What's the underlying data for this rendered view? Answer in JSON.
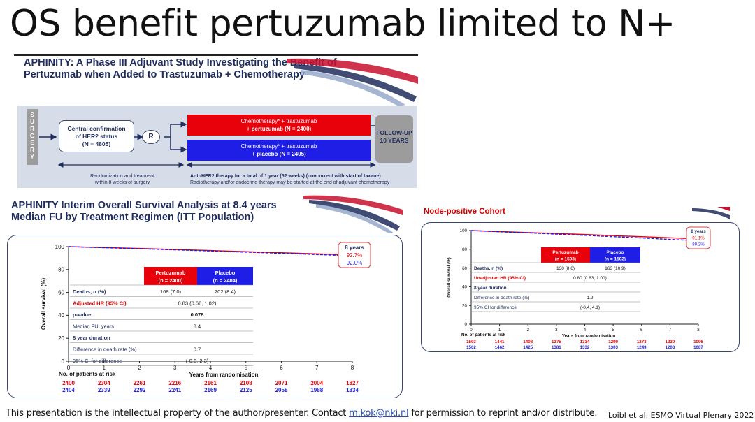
{
  "slide": {
    "title": "OS benefit pertuzumab limited to N+",
    "footer_prefix": "This presentation is the intellectual property of the author/presenter. Contact ",
    "footer_link": "m.kok@nki.nl",
    "footer_suffix": " for permission to reprint and/or distribute.",
    "citation": "Loibl et al. ESMO Virtual Plenary 2022"
  },
  "design": {
    "title": "APHINITY: A Phase III Adjuvant Study Investigating the Benefit of Pertuzumab when Added to Trastuzumab + Chemotherapy",
    "surgery_letters": [
      "S",
      "U",
      "R",
      "G",
      "E",
      "R",
      "Y"
    ],
    "confirmation": [
      "Central confirmation",
      "of HER2 status",
      "(N = 4805)"
    ],
    "randomize": "R",
    "arm_red": [
      "Chemotherapy* + trastuzumab",
      "+ pertuzumab (N = 2400)"
    ],
    "arm_blue": [
      "Chemotherapy* + trastuzumab",
      "+ placebo (N = 2405)"
    ],
    "followup": [
      "FOLLOW-UP",
      "10 YEARS"
    ],
    "note_left": [
      "Randomization and treatment",
      "within 8 weeks of surgery"
    ],
    "note_right_bold": "Anti-HER2 therapy for a total of 1 year (52 weeks) (concurrent with start of taxane)",
    "note_right": "Radiotherapy and/or endocrine therapy may be started at the end of adjuvant chemotherapy"
  },
  "itt": {
    "title": "APHINITY Interim Overall Survival Analysis at 8.4 years Median FU by Treatment Regimen (ITT Population)",
    "ylabel": "Overall survival (%)",
    "xlabel": "Years from randomisation",
    "risk_label": "No. of patients at risk",
    "box_title": "8 years",
    "box_red": "92.7%",
    "box_blue": "92.0%",
    "header_red": [
      "Pertuzumab",
      "(n = 2400)"
    ],
    "header_blue": [
      "Placebo",
      "(n = 2404)"
    ],
    "rows": [
      {
        "label": "Deaths, n (%)",
        "red": "168 (7.0)",
        "blue": "202 (8.4)",
        "label_color": "#1f2d5c",
        "bold": true
      },
      {
        "label": "Adjusted HR (95% CI)",
        "merged": "0.83 (0.68, 1.02)",
        "label_color": "#d10000",
        "bold": true
      },
      {
        "label": "p-value",
        "merged": "0.078",
        "label_color": "#1f2d5c",
        "bold": true,
        "value_bold": true
      },
      {
        "label": "Median FU, years",
        "merged": "8.4",
        "label_color": "#1f2d5c",
        "bold": false
      },
      {
        "label": "8 year duration",
        "merged": "",
        "label_color": "#1f2d5c",
        "bold": true
      },
      {
        "label": "Difference in death rate (%)",
        "merged": "0.7",
        "label_color": "#1f2d5c",
        "bold": false
      },
      {
        "label": "95% CI for difference",
        "merged": "(-0.8, 2.3)",
        "label_color": "#1f2d5c",
        "bold": false
      }
    ],
    "risk_red": [
      "2400",
      "2304",
      "2261",
      "2216",
      "2161",
      "2108",
      "2071",
      "2004",
      "1827"
    ],
    "risk_blue": [
      "2404",
      "2339",
      "2292",
      "2241",
      "2169",
      "2125",
      "2058",
      "1988",
      "1834"
    ]
  },
  "node": {
    "title": "Node-positive Cohort",
    "ylabel": "Overall survival (%)",
    "xlabel": "Years from randomisation",
    "risk_label": "No. of patients at risk",
    "box_title": "8 years",
    "box_red": "91.1%",
    "box_blue": "89.2%",
    "header_red": [
      "Pertuzumab",
      "(n = 1503)"
    ],
    "header_blue": [
      "Placebo",
      "(n = 1502)"
    ],
    "rows": [
      {
        "label": "Deaths, n (%)",
        "red": "130 (8.6)",
        "blue": "163 (10.9)",
        "label_color": "#1f2d5c",
        "bold": true
      },
      {
        "label": "Unadjusted HR (95% CI)",
        "merged": "0.80 (0.63, 1.00)",
        "label_color": "#d10000",
        "bold": true
      },
      {
        "label": "8 year duration",
        "merged": "",
        "label_color": "#1f2d5c",
        "bold": true
      },
      {
        "label": "Difference in death rate (%)",
        "merged": "1.9",
        "label_color": "#1f2d5c",
        "bold": false
      },
      {
        "label": "95% CI for difference",
        "merged": "(-0.4, 4.1)",
        "label_color": "#1f2d5c",
        "bold": false
      }
    ],
    "risk_red": [
      "1503",
      "1441",
      "1408",
      "1375",
      "1334",
      "1299",
      "1273",
      "1230",
      "1096"
    ],
    "risk_blue": [
      "1502",
      "1462",
      "1425",
      "1381",
      "1332",
      "1303",
      "1249",
      "1203",
      "1087"
    ]
  },
  "colors": {
    "red": "#e8000b",
    "blue": "#1e1ee6",
    "navy": "#1f2d5c",
    "accent_red": "#d10000",
    "panel_border": "#39456b"
  },
  "chart_data": [
    {
      "type": "line",
      "x": [
        0,
        1,
        2,
        3,
        4,
        5,
        6,
        7,
        8
      ],
      "series": [
        {
          "name": "Pertuzumab",
          "values": [
            100,
            99.2,
            98.4,
            97.5,
            96.6,
            95.6,
            94.7,
            93.7,
            92.7
          ]
        },
        {
          "name": "Placebo",
          "values": [
            100,
            99.1,
            98.2,
            97.2,
            96.2,
            95.2,
            94.2,
            93.1,
            92.0
          ]
        }
      ],
      "xlim": [
        0,
        8
      ],
      "ylim": [
        0,
        100
      ],
      "xticks": [
        0,
        1,
        2,
        3,
        4,
        5,
        6,
        7,
        8
      ],
      "yticks": [
        0,
        20,
        40,
        60,
        80,
        100
      ],
      "xlabel": "Years from randomisation",
      "ylabel": "Overall survival (%)",
      "annotations": [
        "8 years",
        "92.7%",
        "92.0%"
      ]
    },
    {
      "type": "line",
      "x": [
        0,
        1,
        2,
        3,
        4,
        5,
        6,
        7,
        8
      ],
      "series": [
        {
          "name": "Pertuzumab",
          "values": [
            100,
            98.9,
            97.9,
            96.9,
            95.8,
            94.6,
            93.5,
            92.3,
            91.1
          ]
        },
        {
          "name": "Placebo",
          "values": [
            100,
            98.7,
            97.5,
            96.2,
            94.9,
            93.5,
            92.1,
            90.6,
            89.2
          ]
        }
      ],
      "xlim": [
        0,
        8
      ],
      "ylim": [
        0,
        100
      ],
      "xticks": [
        0,
        1,
        2,
        3,
        4,
        5,
        6,
        7,
        8
      ],
      "yticks": [
        0,
        20,
        40,
        60,
        80,
        100
      ],
      "xlabel": "Years from randomisation",
      "ylabel": "Overall survival (%)",
      "annotations": [
        "8 years",
        "91.1%",
        "89.2%"
      ]
    }
  ]
}
